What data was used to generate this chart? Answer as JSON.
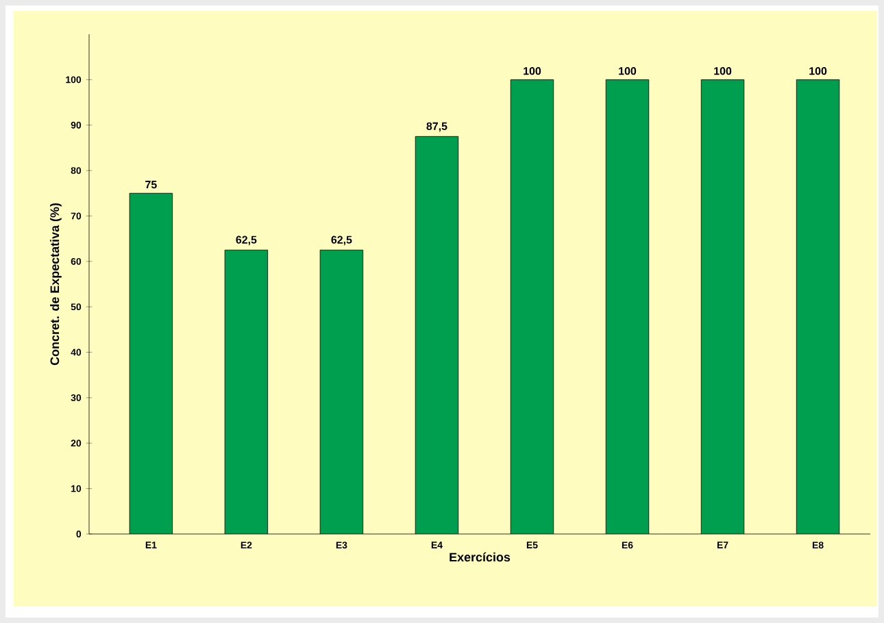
{
  "chart_data": {
    "type": "bar",
    "xlabel": "Exercícios",
    "ylabel": "Concret. de Expectativa (%)",
    "categories": [
      "E1",
      "E2",
      "E3",
      "E4",
      "E5",
      "E6",
      "E7",
      "E8"
    ],
    "values": [
      75,
      62.5,
      62.5,
      87.5,
      100,
      100,
      100,
      100
    ],
    "value_labels": [
      "75",
      "62,5",
      "62,5",
      "87,5",
      "100",
      "100",
      "100",
      "100"
    ],
    "color": "#009e4f",
    "ylim": [
      0,
      110
    ],
    "yticks": [
      0,
      10,
      20,
      30,
      40,
      50,
      60,
      70,
      80,
      90,
      100
    ]
  }
}
